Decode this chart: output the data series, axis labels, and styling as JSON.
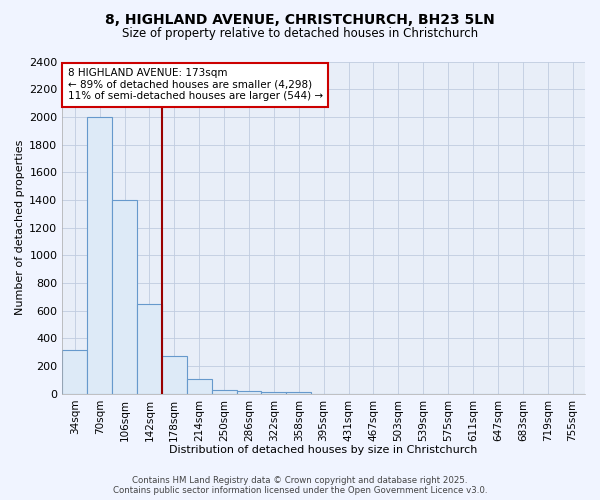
{
  "title_line1": "8, HIGHLAND AVENUE, CHRISTCHURCH, BH23 5LN",
  "title_line2": "Size of property relative to detached houses in Christchurch",
  "xlabel": "Distribution of detached houses by size in Christchurch",
  "ylabel": "Number of detached properties",
  "bar_labels": [
    "34sqm",
    "70sqm",
    "106sqm",
    "142sqm",
    "178sqm",
    "214sqm",
    "250sqm",
    "286sqm",
    "322sqm",
    "358sqm",
    "395sqm",
    "431sqm",
    "467sqm",
    "503sqm",
    "539sqm",
    "575sqm",
    "611sqm",
    "647sqm",
    "683sqm",
    "719sqm",
    "755sqm"
  ],
  "bar_values": [
    320,
    2000,
    1400,
    650,
    270,
    110,
    30,
    20,
    15,
    10,
    0,
    0,
    0,
    0,
    0,
    0,
    0,
    0,
    0,
    0,
    0
  ],
  "bar_color": "#ddeaf7",
  "bar_edge_color": "#6699cc",
  "ylim": [
    0,
    2400
  ],
  "yticks": [
    0,
    200,
    400,
    600,
    800,
    1000,
    1200,
    1400,
    1600,
    1800,
    2000,
    2200,
    2400
  ],
  "vline_x": 3.5,
  "vline_color": "#990000",
  "annotation_title": "8 HIGHLAND AVENUE: 173sqm",
  "annotation_line1": "← 89% of detached houses are smaller (4,298)",
  "annotation_line2": "11% of semi-detached houses are larger (544) →",
  "annotation_box_facecolor": "#ffffff",
  "annotation_box_edgecolor": "#cc0000",
  "fig_facecolor": "#f0f4ff",
  "ax_facecolor": "#e8eef8",
  "grid_color": "#c0cce0",
  "footer_line1": "Contains HM Land Registry data © Crown copyright and database right 2025.",
  "footer_line2": "Contains public sector information licensed under the Open Government Licence v3.0."
}
